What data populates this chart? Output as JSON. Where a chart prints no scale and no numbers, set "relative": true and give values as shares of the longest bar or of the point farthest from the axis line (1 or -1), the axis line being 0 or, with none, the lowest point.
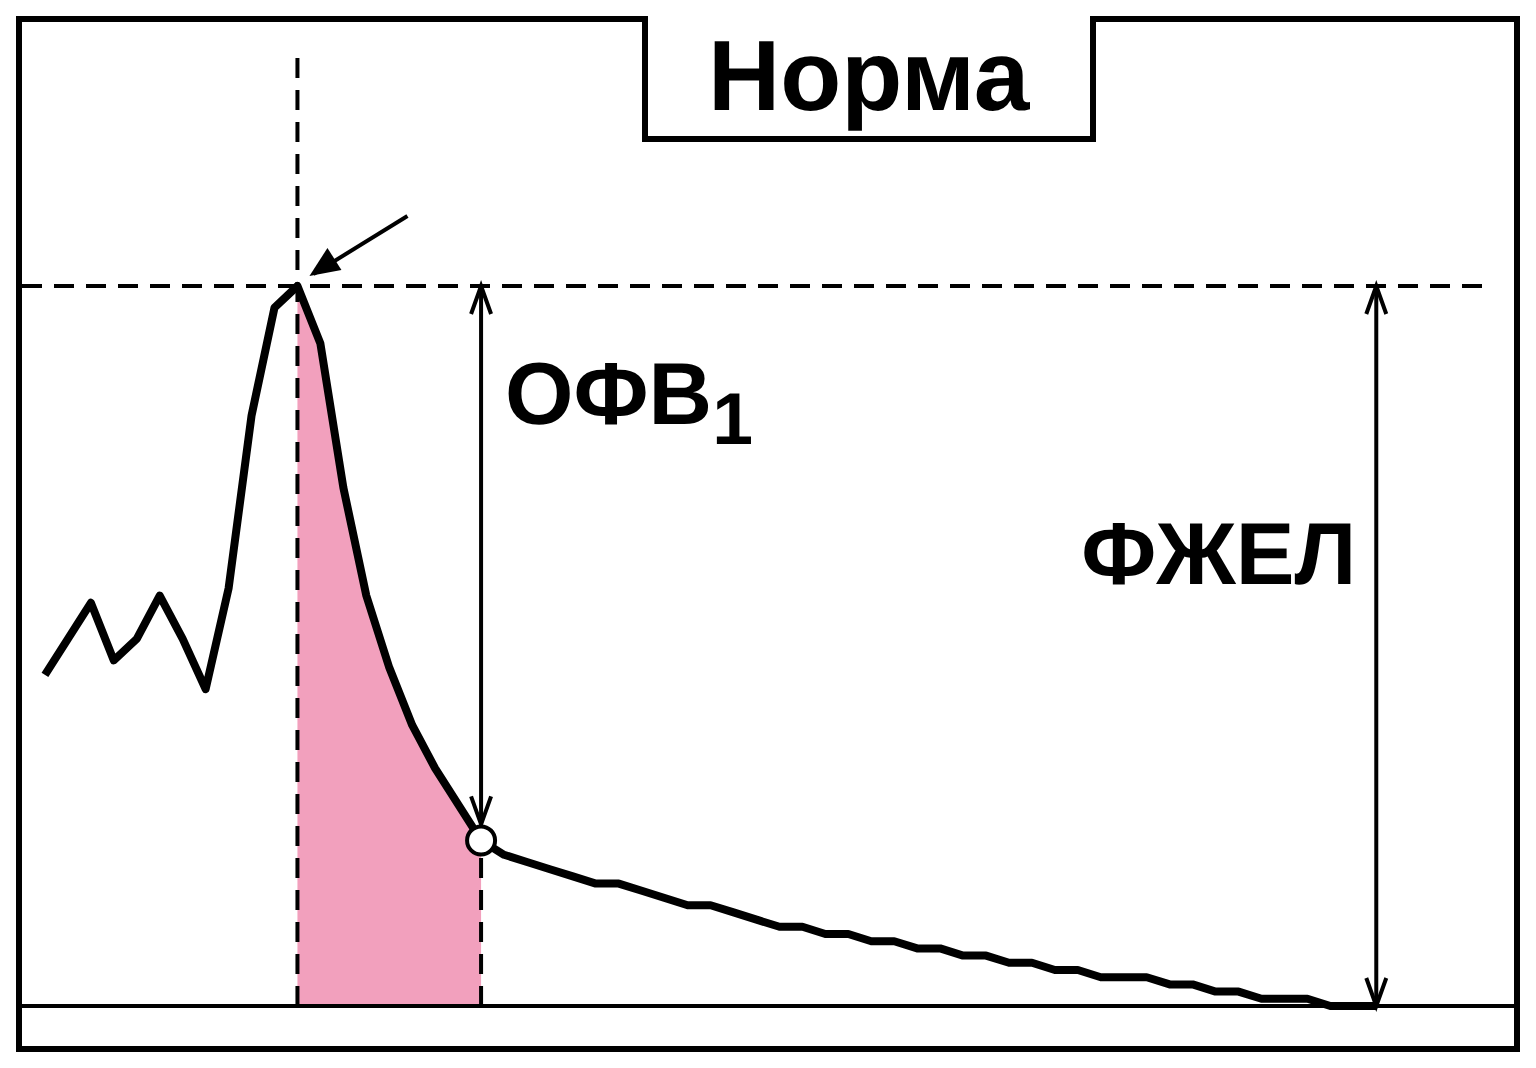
{
  "chart_data": {
    "type": "line",
    "title": "Норма",
    "relative": true,
    "categories": [
      null,
      null,
      null,
      null,
      null,
      null,
      null,
      null,
      null,
      null,
      null,
      null,
      null,
      null,
      null,
      null,
      null,
      null,
      null,
      null,
      null,
      null,
      null,
      null,
      null,
      null,
      null,
      null,
      null,
      null,
      null,
      null,
      null,
      null,
      null,
      null,
      null,
      null,
      null,
      null,
      null,
      null,
      null,
      null,
      null,
      null,
      null,
      null,
      null,
      null,
      null,
      null,
      null,
      null,
      null,
      null,
      null,
      null,
      null,
      null,
      null,
      null,
      null,
      null,
      null,
      null
    ],
    "series": [
      {
        "color": "#000000",
        "values": [
          null,
          0.46,
          0.51,
          0.56,
          0.48,
          0.51,
          0.57,
          0.51,
          0.44,
          0.58,
          0.82,
          0.97,
          1,
          0.92,
          0.72,
          0.57,
          0.47,
          0.39,
          0.33,
          0.28,
          0.23,
          0.21,
          0.2,
          0.19,
          0.18,
          0.17,
          0.17,
          0.16,
          0.15,
          0.14,
          0.14,
          0.13,
          0.12,
          0.11,
          0.11,
          0.1,
          0.1,
          0.09,
          0.09,
          0.08,
          0.08,
          0.07,
          0.07,
          0.06,
          0.06,
          0.05,
          0.05,
          0.04,
          0.04,
          0.04,
          0.03,
          0.03,
          0.02,
          0.02,
          0.01,
          0.01,
          0.01,
          0,
          0,
          0,
          null,
          null,
          null,
          null,
          null,
          null
        ]
      }
    ],
    "ref_lines": [
      {
        "axis": "y",
        "value": 1,
        "line_style": "dashed"
      }
    ],
    "annotations": [
      "ОФВ$_{1}$",
      "ФЖЕЛ"
    ],
    "grid": false,
    "legend": false
  }
}
